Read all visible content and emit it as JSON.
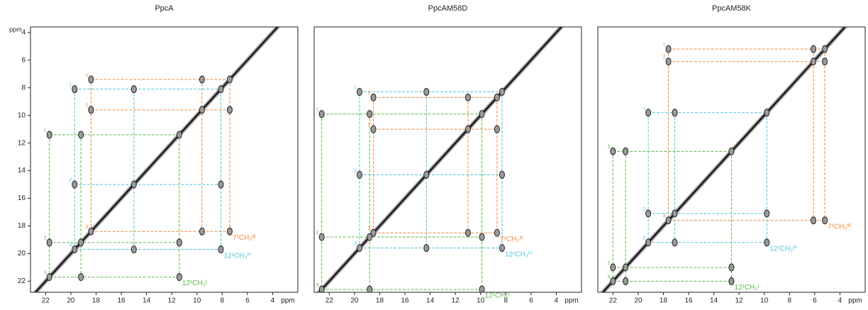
{
  "chart_data": [
    {
      "type": "nmr2d",
      "title": "PpcA",
      "xlim": [
        23.2,
        2.0
      ],
      "ylim": [
        3.6,
        22.8
      ],
      "xticks": [
        22,
        20,
        18,
        16,
        14,
        12,
        10,
        8,
        6,
        4
      ],
      "yticks": [
        4,
        6,
        8,
        10,
        12,
        14,
        16,
        18,
        20,
        22
      ],
      "xlabel": "ppm",
      "ylabel": "ppm",
      "spin_systems": [
        {
          "name": "7¹CH₃ᴵᴵᴵ",
          "color": "#f08a3c",
          "shifts": [
            7.4,
            9.6,
            18.4
          ],
          "peak_labels": [
            "1",
            "2",
            "3"
          ]
        },
        {
          "name": "12¹CH₃ᴵⱽ",
          "color": "#4fc3dc",
          "shifts": [
            8.1,
            15.0,
            19.7
          ],
          "peak_labels": [
            "1",
            "2",
            "3"
          ]
        },
        {
          "name": "12¹CH₃ᴵ",
          "color": "#5cb848",
          "shifts": [
            11.4,
            19.2,
            21.7
          ],
          "peak_labels": [
            "1",
            "2",
            "3"
          ]
        }
      ]
    },
    {
      "type": "nmr2d",
      "title": "PpcAM58D",
      "xlim": [
        23.2,
        2.0
      ],
      "ylim": [
        3.6,
        22.8
      ],
      "xticks": [
        22,
        20,
        18,
        16,
        14,
        12,
        10,
        8,
        6,
        4
      ],
      "xlabel": "ppm",
      "spin_systems": [
        {
          "name": "7¹CH₃ᴵᴵᴵ",
          "color": "#f08a3c",
          "shifts": [
            8.7,
            11.0,
            18.5
          ],
          "peak_labels": [
            "1",
            "2",
            "3"
          ]
        },
        {
          "name": "12¹CH₃ᴵⱽ",
          "color": "#4fc3dc",
          "shifts": [
            8.3,
            14.3,
            19.6
          ],
          "peak_labels": [
            "1",
            "2",
            "3"
          ]
        },
        {
          "name": "12¹CH₃ᴵ",
          "color": "#5cb848",
          "shifts": [
            9.9,
            18.8,
            22.6
          ],
          "peak_labels": [
            "1",
            "2",
            "3"
          ]
        }
      ]
    },
    {
      "type": "nmr2d",
      "title": "PpcAM58K",
      "xlim": [
        23.2,
        2.0
      ],
      "ylim": [
        3.6,
        22.8
      ],
      "xticks": [
        22,
        20,
        18,
        16,
        14,
        12,
        10,
        8,
        6,
        4
      ],
      "xlabel": "ppm",
      "spin_systems": [
        {
          "name": "7¹CH₃ᴵᴵᴵ",
          "color": "#f08a3c",
          "shifts": [
            5.2,
            6.1,
            17.6
          ],
          "peak_labels": [
            "1",
            "2",
            "3"
          ]
        },
        {
          "name": "12¹CH₃ᴵⱽ",
          "color": "#4fc3dc",
          "shifts": [
            9.8,
            17.1,
            19.2
          ],
          "peak_labels": [
            "1",
            "2",
            "3"
          ]
        },
        {
          "name": "12¹CH₃ᴵ",
          "color": "#5cb848",
          "shifts": [
            12.6,
            21.0,
            22.0
          ],
          "peak_labels": [
            "1",
            "2",
            "3"
          ]
        }
      ]
    }
  ]
}
